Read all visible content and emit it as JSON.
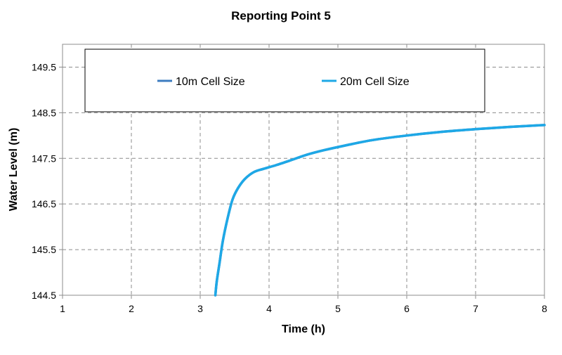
{
  "chart_data": {
    "type": "line",
    "title": "Reporting Point 5",
    "xlabel": "Time (h)",
    "ylabel": "Water Level (m)",
    "xlim": [
      1,
      8
    ],
    "ylim": [
      144.5,
      150.0
    ],
    "x_ticks": [
      1,
      2,
      3,
      4,
      5,
      6,
      7,
      8
    ],
    "y_ticks": [
      144.5,
      145.5,
      146.5,
      147.5,
      148.5,
      149.5
    ],
    "y_tick_labels": [
      "144.5",
      "145.5",
      "146.5",
      "147.5",
      "148.5",
      "149.5"
    ],
    "grid": true,
    "legend_position": "top",
    "series": [
      {
        "name": "10m Cell Size",
        "color": "#3d7cc0",
        "x": [
          3.22,
          3.24,
          3.28,
          3.33,
          3.4,
          3.47,
          3.55,
          3.65,
          3.78,
          3.92,
          4.1,
          4.3,
          4.55,
          4.8,
          5.1,
          5.5,
          6.0,
          6.5,
          7.0,
          7.5,
          8.0
        ],
        "y": [
          144.5,
          144.8,
          145.2,
          145.7,
          146.2,
          146.6,
          146.85,
          147.05,
          147.2,
          147.27,
          147.35,
          147.45,
          147.58,
          147.68,
          147.78,
          147.9,
          148.0,
          148.08,
          148.14,
          148.19,
          148.23
        ]
      },
      {
        "name": "20m Cell Size",
        "color": "#1ea8e6",
        "x": [
          3.22,
          3.24,
          3.28,
          3.33,
          3.4,
          3.47,
          3.55,
          3.65,
          3.78,
          3.92,
          4.1,
          4.3,
          4.55,
          4.8,
          5.1,
          5.5,
          6.0,
          6.5,
          7.0,
          7.5,
          8.0
        ],
        "y": [
          144.5,
          144.8,
          145.2,
          145.7,
          146.2,
          146.6,
          146.85,
          147.05,
          147.2,
          147.27,
          147.35,
          147.45,
          147.58,
          147.68,
          147.78,
          147.9,
          148.0,
          148.08,
          148.14,
          148.19,
          148.23
        ]
      }
    ]
  }
}
